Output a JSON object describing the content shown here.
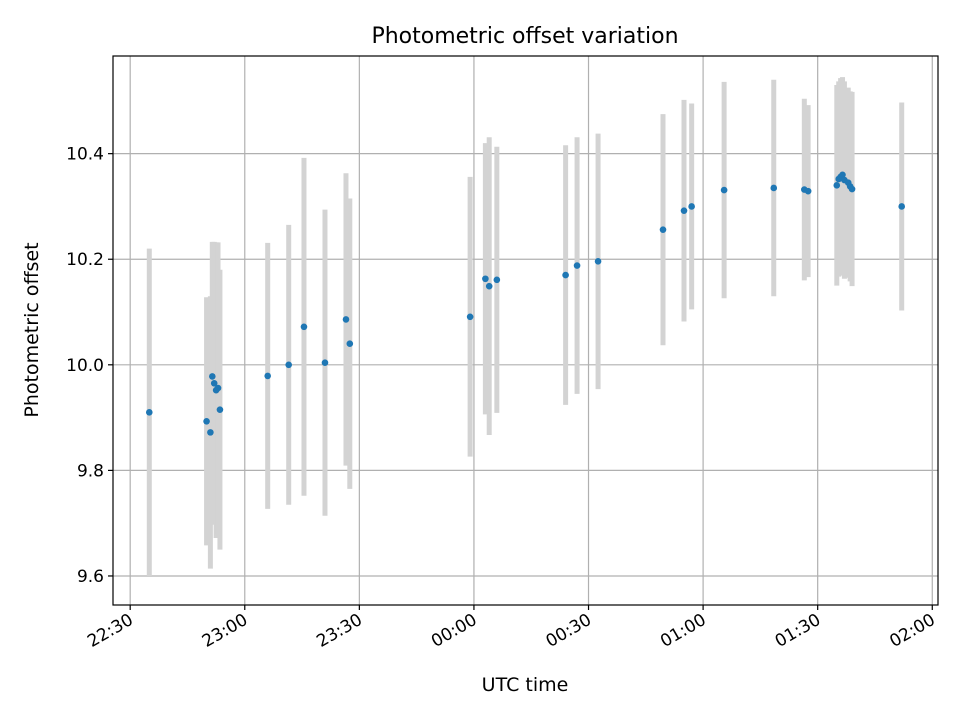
{
  "colors": {
    "point": "#1f77b4",
    "errorbar": "#d3d3d3",
    "grid": "#b0b0b0",
    "axes": "#000000"
  },
  "chart_data": {
    "type": "scatter",
    "title": "Photometric offset variation",
    "xlabel": "UTC time",
    "ylabel": "Photometric offset",
    "grid": true,
    "x_ticks": [
      "22:30",
      "23:00",
      "23:30",
      "00:00",
      "00:30",
      "01:00",
      "01:30",
      "02:00"
    ],
    "y_ticks": [
      "9.6",
      "9.8",
      "10.0",
      "10.2",
      "10.4"
    ],
    "x_range": [
      "22:25:30",
      "02:01:30"
    ],
    "y_range": [
      9.545,
      10.585
    ],
    "points": [
      {
        "t": "22:35:00",
        "y": 9.91,
        "err": 0.31
      },
      {
        "t": "22:50:00",
        "y": 9.893,
        "err": 0.235
      },
      {
        "t": "22:51:00",
        "y": 9.872,
        "err": 0.258
      },
      {
        "t": "22:51:30",
        "y": 9.978,
        "err": 0.255
      },
      {
        "t": "22:52:00",
        "y": 9.965,
        "err": 0.268
      },
      {
        "t": "22:52:30",
        "y": 9.952,
        "err": 0.28
      },
      {
        "t": "22:53:00",
        "y": 9.956,
        "err": 0.276
      },
      {
        "t": "22:53:30",
        "y": 9.915,
        "err": 0.265
      },
      {
        "t": "23:06:00",
        "y": 9.979,
        "err": 0.252
      },
      {
        "t": "23:11:30",
        "y": 10.0,
        "err": 0.265
      },
      {
        "t": "23:15:30",
        "y": 10.072,
        "err": 0.32
      },
      {
        "t": "23:21:00",
        "y": 10.004,
        "err": 0.29
      },
      {
        "t": "23:26:30",
        "y": 10.086,
        "err": 0.277
      },
      {
        "t": "23:27:30",
        "y": 10.04,
        "err": 0.275
      },
      {
        "t": "23:59:00",
        "y": 10.091,
        "err": 0.265
      },
      {
        "t": "00:03:00",
        "y": 10.163,
        "err": 0.257
      },
      {
        "t": "00:04:00",
        "y": 10.149,
        "err": 0.282
      },
      {
        "t": "00:06:00",
        "y": 10.161,
        "err": 0.252
      },
      {
        "t": "00:24:00",
        "y": 10.17,
        "err": 0.246
      },
      {
        "t": "00:27:00",
        "y": 10.188,
        "err": 0.243
      },
      {
        "t": "00:32:30",
        "y": 10.196,
        "err": 0.242
      },
      {
        "t": "00:49:30",
        "y": 10.256,
        "err": 0.219
      },
      {
        "t": "00:55:00",
        "y": 10.292,
        "err": 0.21
      },
      {
        "t": "00:57:00",
        "y": 10.3,
        "err": 0.195
      },
      {
        "t": "01:05:30",
        "y": 10.331,
        "err": 0.205
      },
      {
        "t": "01:18:30",
        "y": 10.335,
        "err": 0.205
      },
      {
        "t": "01:26:30",
        "y": 10.332,
        "err": 0.172
      },
      {
        "t": "01:27:30",
        "y": 10.329,
        "err": 0.163
      },
      {
        "t": "01:35:00",
        "y": 10.34,
        "err": 0.19
      },
      {
        "t": "01:35:30",
        "y": 10.352,
        "err": 0.185
      },
      {
        "t": "01:36:00",
        "y": 10.356,
        "err": 0.187
      },
      {
        "t": "01:36:30",
        "y": 10.36,
        "err": 0.185
      },
      {
        "t": "01:37:00",
        "y": 10.35,
        "err": 0.187
      },
      {
        "t": "01:38:00",
        "y": 10.345,
        "err": 0.18
      },
      {
        "t": "01:38:30",
        "y": 10.338,
        "err": 0.18
      },
      {
        "t": "01:39:00",
        "y": 10.333,
        "err": 0.184
      },
      {
        "t": "01:52:00",
        "y": 10.3,
        "err": 0.197
      }
    ]
  }
}
